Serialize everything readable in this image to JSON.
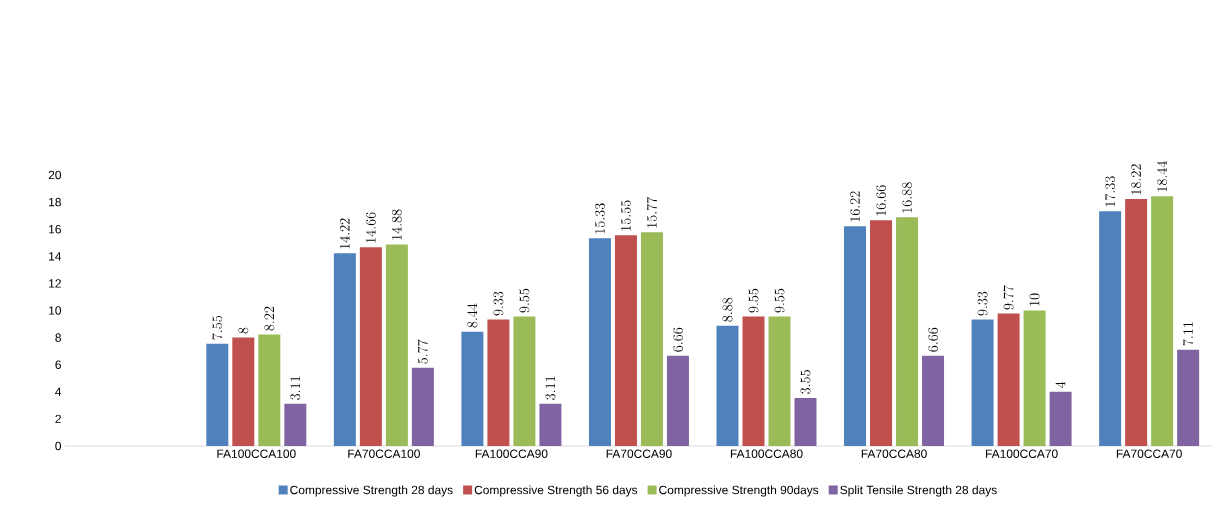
{
  "chart_data": {
    "type": "bar",
    "categories": [
      null,
      "FA100CCA100",
      "FA70CCA100",
      "FA100CCA90",
      "FA70CCA90",
      "FA100CCA80",
      "FA70CCA80",
      "FA100CCA70",
      "FA70CCA70"
    ],
    "series": [
      {
        "name": "Compressive Strength 28 days",
        "color": "#4f81bd",
        "values": [
          null,
          7.55,
          14.22,
          8.44,
          15.33,
          8.88,
          16.22,
          9.33,
          17.33
        ]
      },
      {
        "name": "Compressive Strength 56 days",
        "color": "#c0504d",
        "values": [
          null,
          8,
          14.66,
          9.33,
          15.55,
          9.55,
          16.66,
          9.77,
          18.22
        ]
      },
      {
        "name": "Compressive Strength 90days",
        "color": "#9bbb59",
        "values": [
          null,
          8.22,
          14.88,
          9.55,
          15.77,
          9.55,
          16.88,
          10,
          18.44
        ]
      },
      {
        "name": "Split Tensile Strength 28 days",
        "color": "#8064a2",
        "values": [
          null,
          3.11,
          5.77,
          3.11,
          6.66,
          3.55,
          6.66,
          4,
          7.11
        ]
      }
    ],
    "ylim": [
      0,
      20
    ],
    "yticks": [
      0,
      2,
      4,
      6,
      8,
      10,
      12,
      14,
      16,
      18,
      20
    ],
    "data_labels": true,
    "legend": "bottom",
    "grid": false
  }
}
